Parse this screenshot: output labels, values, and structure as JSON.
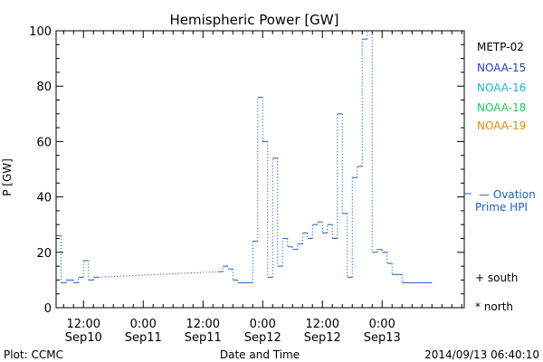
{
  "chart_data": {
    "type": "line",
    "title": "Hemispheric Power [GW]",
    "xlabel": "Date and Time",
    "ylabel": "P [GW]",
    "x_unit": "hours",
    "xlim": [
      -5.5,
      76.5
    ],
    "ylim": [
      0,
      100
    ],
    "yticks": [
      0,
      20,
      40,
      60,
      80,
      100
    ],
    "xticks": [
      {
        "x": 0,
        "time": "12:00",
        "date": "Sep10"
      },
      {
        "x": 12,
        "time": "0:00",
        "date": "Sep11"
      },
      {
        "x": 24,
        "time": "12:00",
        "date": "Sep11"
      },
      {
        "x": 36,
        "time": "0:00",
        "date": "Sep12"
      },
      {
        "x": 48,
        "time": "12:00",
        "date": "Sep12"
      },
      {
        "x": 60,
        "time": "0:00",
        "date": "Sep13"
      }
    ],
    "legend": {
      "placement": "right",
      "satellites": [
        {
          "name": "METP-02",
          "color": "#000000"
        },
        {
          "name": "NOAA-15",
          "color": "#1f3fbf"
        },
        {
          "name": "NOAA-16",
          "color": "#1fb5d6"
        },
        {
          "name": "NOAA-18",
          "color": "#22cc55"
        },
        {
          "name": "NOAA-19",
          "color": "#e08a10"
        }
      ],
      "model_line1": "— Ovation",
      "model_line2": "Prime HPI",
      "model_color": "#1f5fbf",
      "south_label": "+ south",
      "north_label": "* north"
    },
    "series": [
      {
        "name": "Ovation Prime HPI",
        "color": "#1f5fbf",
        "step": true,
        "x": [
          -5.5,
          -4.5,
          -3.5,
          -2,
          -1,
          0,
          1,
          2,
          27,
          28,
          29,
          30,
          31,
          32,
          34,
          35,
          36,
          37,
          38,
          39,
          40,
          41,
          42,
          43,
          44,
          45,
          46,
          47,
          48,
          49,
          50,
          51,
          52,
          53,
          54,
          55,
          56,
          57,
          58,
          59,
          60,
          61,
          62,
          63,
          64,
          65,
          66,
          67,
          68,
          69
        ],
        "y": [
          26,
          9,
          10,
          9,
          11,
          17,
          10,
          11,
          13,
          15,
          14,
          10,
          9,
          9,
          24,
          76,
          60,
          11,
          54,
          15,
          25,
          22,
          21,
          23,
          27,
          25,
          30,
          31,
          27,
          30,
          25,
          70,
          34,
          11,
          47,
          51,
          97,
          100,
          20,
          21,
          20,
          16,
          12,
          12,
          9,
          9,
          9,
          9,
          9,
          9
        ]
      }
    ],
    "plot_label": "Plot: CCMC",
    "timestamp": "2014/09/13 06:40:10"
  }
}
